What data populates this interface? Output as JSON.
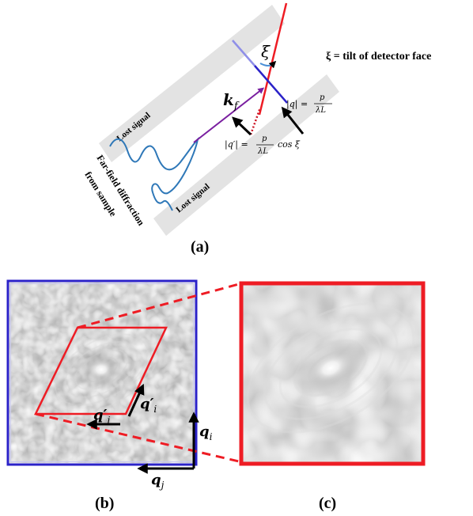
{
  "panel_a": {
    "caption": "(a)",
    "lost_signal_upper": "Lost signal",
    "lost_signal_lower": "Lost signal",
    "far_field_line1": "Far-field diffraction",
    "far_field_line2": "from sample",
    "xi_symbol": "ξ",
    "tilt_definition": "ξ = tilt of detector face",
    "kf_label": "k",
    "kf_sub": "f",
    "q_abs_lhs": "|q| =",
    "q_frac_num": "p",
    "q_frac_den": "λL",
    "qprime_abs_lhs": "|q′| =",
    "qprime_frac_num": "p",
    "qprime_frac_den": "λL",
    "qprime_tail": "cos ξ"
  },
  "panel_b": {
    "caption": "(b)",
    "qj_prime": "q′",
    "qj_prime_sub": "j",
    "qi_prime": "q′",
    "qi_prime_sub": "i",
    "qi": "q",
    "qi_sub": "i",
    "qj": "q",
    "qj_sub": "j"
  },
  "panel_c": {
    "caption": "(c)"
  },
  "colors": {
    "detector_red": "#ee1c24",
    "blue_frame": "#2b22c8",
    "lost_band": "#e3e3e3",
    "wave_blue": "#2f78b8",
    "kf_purple": "#7a1fa0"
  }
}
